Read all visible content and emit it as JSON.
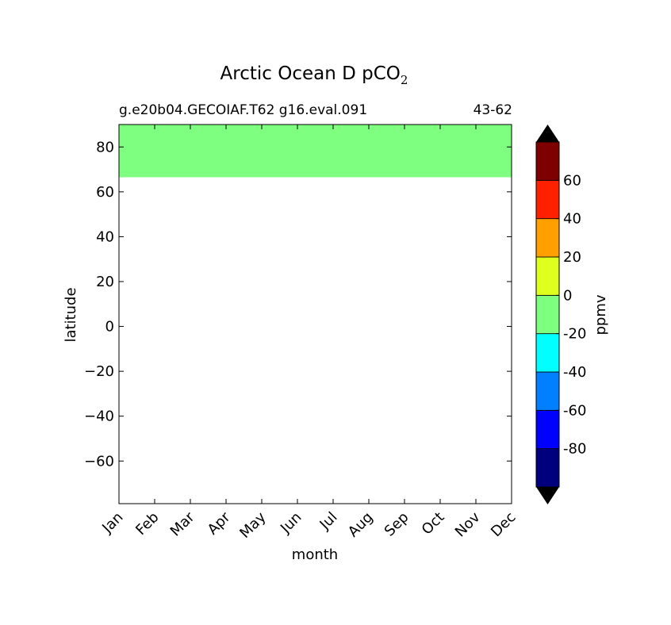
{
  "chart_data": {
    "type": "heatmap",
    "title": "Arctic Ocean D pCO",
    "title_subscript": "2",
    "subtitle_left": "g.e20b04.GECOIAF.T62 g16.eval.091",
    "subtitle_right": "43-62",
    "xlabel": "month",
    "ylabel": "latitude",
    "x_categories": [
      "Jan",
      "Feb",
      "Mar",
      "Apr",
      "May",
      "Jun",
      "Jul",
      "Aug",
      "Sep",
      "Oct",
      "Nov",
      "Dec"
    ],
    "xlim": [
      0,
      11
    ],
    "ylim": [
      -79,
      90
    ],
    "y_ticks": [
      -60,
      -40,
      -20,
      0,
      20,
      40,
      60,
      80
    ],
    "y_tick_labels": [
      "−60",
      "−40",
      "−20",
      "0",
      "20",
      "40",
      "60",
      "80"
    ],
    "filled_region": {
      "lat_min": 66.5,
      "lat_max": 90,
      "month_start": 0,
      "month_end": 11,
      "value_range": [
        -10,
        0
      ],
      "color": "#7fff7f"
    },
    "colorbar": {
      "label": "ppmv",
      "extend": "both",
      "boundaries": [
        -100,
        -90,
        -80,
        -70,
        -60,
        -50,
        -40,
        -30,
        -20,
        -10,
        0,
        10,
        20,
        30,
        40,
        50,
        60,
        70,
        80
      ],
      "level_edges": [
        -100,
        -80,
        -60,
        -40,
        -20,
        0,
        20,
        40,
        60,
        80
      ],
      "colors": [
        "#00007f",
        "#0000ff",
        "#007fff",
        "#00ffff",
        "#7fff7f",
        "#dfff1f",
        "#ff9f00",
        "#ff2000",
        "#7f0000"
      ],
      "under_color": "#000000",
      "over_color": "#000000",
      "ticks": [
        -80,
        -60,
        -40,
        -20,
        0,
        20,
        40,
        60
      ],
      "tick_labels": [
        "-80",
        "-60",
        "-40",
        "-20",
        "0",
        "20",
        "40",
        "60"
      ]
    }
  }
}
